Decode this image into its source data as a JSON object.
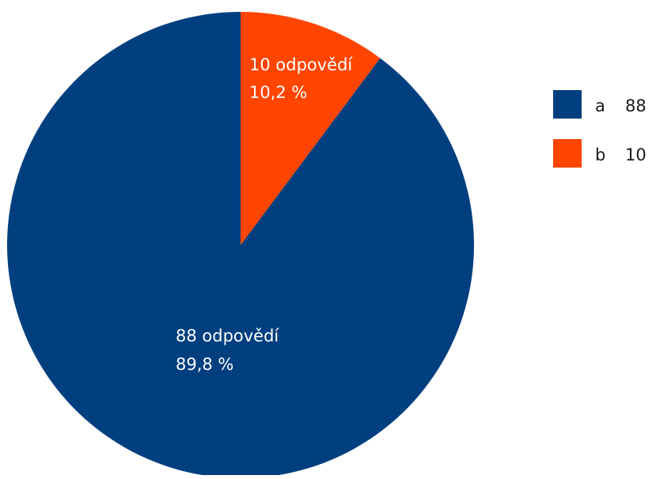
{
  "chart_data": {
    "type": "pie",
    "categories": [
      "a",
      "b"
    ],
    "values": [
      88,
      10
    ],
    "colors": [
      "#003f7f",
      "#ff4500"
    ],
    "slice_labels": [
      {
        "count_text": "88 odpovědí",
        "percent_text": "89,8 %"
      },
      {
        "count_text": "10 odpovědí",
        "percent_text": "10,2 %"
      }
    ],
    "legend": {
      "position": "right",
      "items": [
        {
          "label": "a",
          "value_text": "88"
        },
        {
          "label": "b",
          "value_text": "10"
        }
      ]
    }
  }
}
